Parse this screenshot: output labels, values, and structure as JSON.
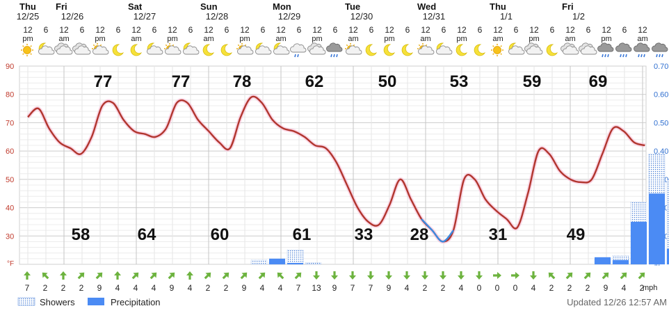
{
  "days": [
    {
      "dow": "Thu",
      "date": "12/25"
    },
    {
      "dow": "Fri",
      "date": "12/26"
    },
    {
      "dow": "Sat",
      "date": "12/27"
    },
    {
      "dow": "Sun",
      "date": "12/28"
    },
    {
      "dow": "Mon",
      "date": "12/29"
    },
    {
      "dow": "Tue",
      "date": "12/30"
    },
    {
      "dow": "Wed",
      "date": "12/31"
    },
    {
      "dow": "Thu",
      "date": "1/1"
    },
    {
      "dow": "Fri",
      "date": "1/2"
    }
  ],
  "hours": [
    {
      "h": "12",
      "ap": "pm"
    },
    {
      "h": "6",
      "ap": ""
    },
    {
      "h": "12",
      "ap": "am"
    },
    {
      "h": "6",
      "ap": ""
    },
    {
      "h": "12",
      "ap": "pm"
    },
    {
      "h": "6",
      "ap": ""
    },
    {
      "h": "12",
      "ap": "am"
    },
    {
      "h": "6",
      "ap": ""
    },
    {
      "h": "12",
      "ap": "pm"
    },
    {
      "h": "6",
      "ap": ""
    },
    {
      "h": "12",
      "ap": "am"
    },
    {
      "h": "6",
      "ap": ""
    },
    {
      "h": "12",
      "ap": "pm"
    },
    {
      "h": "6",
      "ap": ""
    },
    {
      "h": "12",
      "ap": "am"
    },
    {
      "h": "6",
      "ap": ""
    },
    {
      "h": "12",
      "ap": "pm"
    },
    {
      "h": "6",
      "ap": ""
    },
    {
      "h": "12",
      "ap": "am"
    },
    {
      "h": "6",
      "ap": ""
    },
    {
      "h": "12",
      "ap": "pm"
    },
    {
      "h": "6",
      "ap": ""
    },
    {
      "h": "12",
      "ap": "am"
    },
    {
      "h": "6",
      "ap": ""
    },
    {
      "h": "12",
      "ap": "pm"
    },
    {
      "h": "6",
      "ap": ""
    },
    {
      "h": "12",
      "ap": "am"
    },
    {
      "h": "6",
      "ap": ""
    },
    {
      "h": "12",
      "ap": "pm"
    },
    {
      "h": "6",
      "ap": ""
    },
    {
      "h": "12",
      "ap": "am"
    },
    {
      "h": "6",
      "ap": ""
    },
    {
      "h": "12",
      "ap": "pm"
    },
    {
      "h": "6",
      "ap": ""
    },
    {
      "h": "12",
      "ap": "am"
    }
  ],
  "icons": [
    "sun-icon",
    "moon-cloud-icon",
    "cloud-icon",
    "cloud-icon",
    "partly-sunny-icon",
    "moon-icon",
    "moon-icon",
    "moon-cloud-icon",
    "partly-sunny-icon",
    "moon-cloud-icon",
    "moon-icon",
    "moon-icon",
    "partly-sunny-icon",
    "moon-cloud-icon",
    "moon-cloud-icon",
    "light-rain-icon",
    "cloud-icon",
    "rain-cloud-icon",
    "partly-sunny-icon",
    "moon-icon",
    "moon-icon",
    "moon-icon",
    "partly-cloudy-icon",
    "moon-cloud-icon",
    "moon-icon",
    "moon-icon",
    "sun-icon",
    "moon-cloud-icon",
    "cloud-icon",
    "moon-icon",
    "cloud-icon",
    "cloud-icon",
    "rain-cloud-icon",
    "rain-cloud-icon",
    "rain-cloud-icon",
    "rain-cloud-icon",
    "rain-cloud-icon",
    "storm-cloud-icon"
  ],
  "chart_data": {
    "type": "line",
    "title": "",
    "left_axis": {
      "unit": "°F",
      "ticks": [
        90,
        80,
        70,
        60,
        50,
        40,
        30
      ],
      "ylim": [
        20,
        90
      ]
    },
    "right_axis": {
      "unit": "in",
      "ticks": [
        "0.70",
        "0.60",
        "0.50",
        "0.40",
        "0.30",
        "0.20",
        "0.10"
      ],
      "ylim": [
        0,
        0.7
      ]
    },
    "temperature": [
      72,
      75,
      68,
      63,
      61,
      59,
      65,
      76,
      77,
      71,
      67,
      66,
      65,
      68,
      77,
      77,
      71,
      67,
      63,
      61,
      72,
      79,
      77,
      71,
      68,
      67,
      65,
      62,
      61,
      56,
      48,
      40,
      35,
      34,
      41,
      50,
      43,
      36,
      32,
      28,
      32,
      50,
      50,
      43,
      39,
      36,
      33,
      45,
      60,
      59,
      53,
      50,
      49,
      50,
      59,
      68,
      67,
      63,
      62
    ],
    "high_labels": [
      "77",
      "77",
      "78",
      "62",
      "50",
      "53",
      "59",
      "69"
    ],
    "low_labels": [
      "58",
      "64",
      "60",
      "61",
      "33",
      "28",
      "31",
      "49"
    ],
    "precipitation": [
      0,
      0,
      0,
      0,
      0,
      0,
      0,
      0,
      0,
      0,
      0,
      0,
      0,
      0.02,
      0.005,
      0,
      0,
      0,
      0,
      0,
      0,
      0,
      0,
      0,
      0,
      0,
      0,
      0,
      0,
      0,
      0,
      0.025,
      0.015,
      0.15,
      0.25,
      0.055
    ],
    "showers": [
      0,
      0,
      0,
      0,
      0,
      0,
      0,
      0,
      0,
      0,
      0,
      0,
      0.015,
      0.01,
      0.05,
      0.005,
      0,
      0,
      0,
      0,
      0,
      0,
      0,
      0,
      0,
      0,
      0,
      0,
      0,
      0,
      0,
      0.02,
      0.03,
      0.22,
      0.39,
      0.3
    ],
    "wind_speeds": [
      "7",
      "2",
      "2",
      "2",
      "9",
      "4",
      "4",
      "4",
      "9",
      "4",
      "2",
      "2",
      "9",
      "4",
      "4",
      "7",
      "13",
      "9",
      "7",
      "7",
      "9",
      "4",
      "2",
      "2",
      "4",
      "0",
      "0",
      "0",
      "4",
      "2",
      "2",
      "2",
      "9",
      "4",
      "2"
    ],
    "wind_dir": [
      0,
      -45,
      0,
      45,
      45,
      0,
      45,
      45,
      45,
      0,
      45,
      45,
      45,
      45,
      -45,
      45,
      180,
      180,
      180,
      180,
      180,
      180,
      180,
      180,
      180,
      180,
      90,
      90,
      180,
      -45,
      45,
      45,
      45,
      45,
      45
    ],
    "wind_unit": "mph",
    "legend": [
      {
        "name": "Showers"
      },
      {
        "name": "Precipitation"
      }
    ]
  },
  "footer": {
    "updated": "Updated 12/26 12:57 AM"
  }
}
